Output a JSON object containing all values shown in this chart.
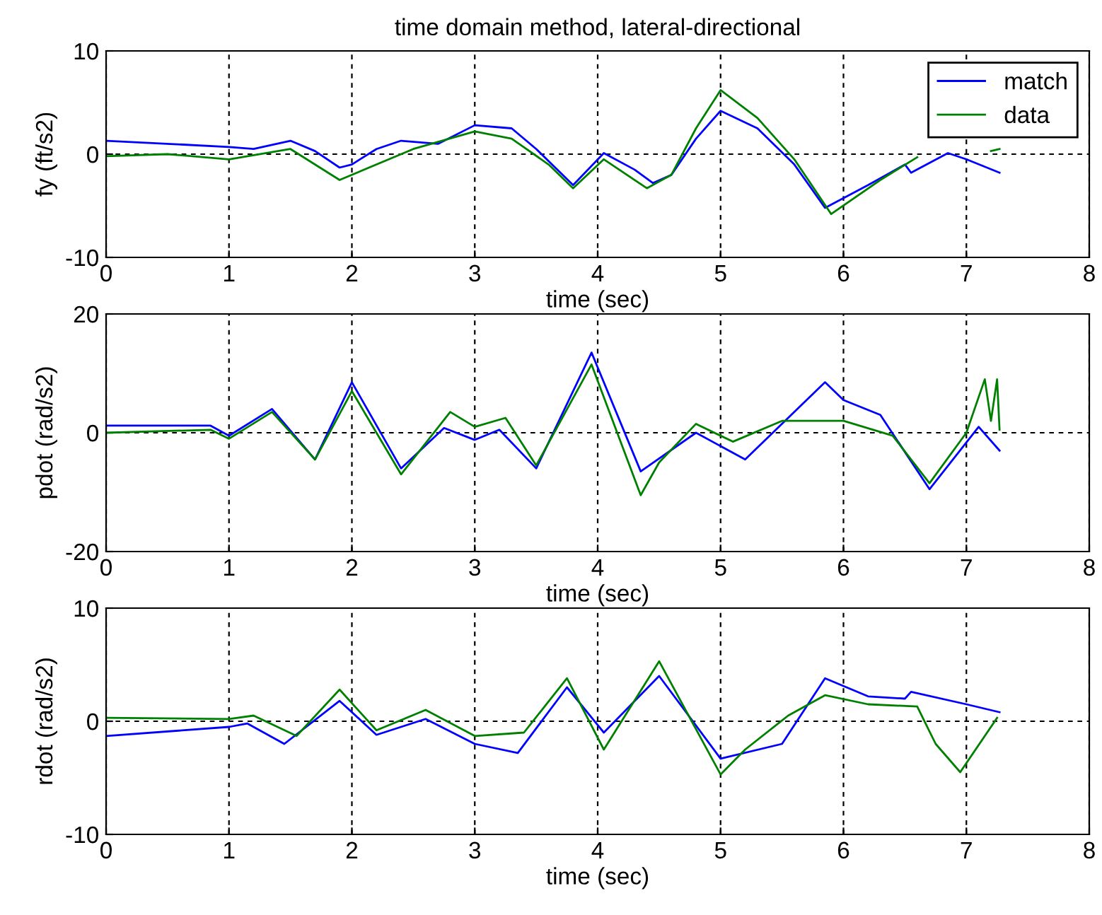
{
  "chart_data": [
    {
      "type": "line",
      "title": "time domain method, lateral-directional",
      "xlabel": "time (sec)",
      "ylabel": "fy (ft/s2)",
      "xlim": [
        0,
        8
      ],
      "xticks": [
        0,
        1,
        2,
        3,
        4,
        5,
        6,
        7,
        8
      ],
      "ylim": [
        -10,
        10
      ],
      "yticks": [
        -10,
        0,
        10
      ],
      "grid": true,
      "legend": "top right",
      "series": [
        {
          "name": "match",
          "color": "#0000ff",
          "x": [
            0,
            1.0,
            1.2,
            1.5,
            1.7,
            1.9,
            2.0,
            2.2,
            2.4,
            2.7,
            3.0,
            3.3,
            3.5,
            3.8,
            4.05,
            4.3,
            4.45,
            4.6,
            4.8,
            5.0,
            5.3,
            5.6,
            5.85,
            6.2,
            6.5,
            6.55,
            6.85,
            7.0,
            7.27
          ],
          "values": [
            1.3,
            0.7,
            0.5,
            1.3,
            0.3,
            -1.3,
            -1.0,
            0.5,
            1.3,
            1.0,
            2.8,
            2.5,
            0.5,
            -3.0,
            0.1,
            -1.5,
            -2.8,
            -2.0,
            1.5,
            4.2,
            2.5,
            -1.0,
            -5.2,
            -3.0,
            -1.0,
            -1.8,
            0.1,
            -0.5,
            -1.8
          ]
        },
        {
          "name": "data",
          "color": "#008000",
          "x": [
            0,
            0.5,
            1.0,
            1.5,
            1.9,
            2.5,
            3.0,
            3.3,
            3.6,
            3.8,
            4.05,
            4.4,
            4.6,
            4.8,
            5.0,
            5.3,
            5.6,
            5.9,
            6.3,
            6.6,
            6.7,
            7.2,
            7.27
          ],
          "values": [
            -0.2,
            0.0,
            -0.5,
            0.5,
            -2.5,
            0.5,
            2.2,
            1.5,
            -1.0,
            -3.3,
            -0.5,
            -3.3,
            -2.0,
            2.5,
            6.2,
            3.5,
            -0.5,
            -5.8,
            -2.5,
            -0.3,
            null,
            0.3,
            0.5
          ]
        }
      ]
    },
    {
      "type": "line",
      "xlabel": "time (sec)",
      "ylabel": "pdot (rad/s2)",
      "xlim": [
        0,
        8
      ],
      "xticks": [
        0,
        1,
        2,
        3,
        4,
        5,
        6,
        7,
        8
      ],
      "ylim": [
        -20,
        20
      ],
      "yticks": [
        -20,
        0,
        20
      ],
      "grid": true,
      "series": [
        {
          "color": "#0000ff",
          "x": [
            0,
            0.85,
            1.0,
            1.35,
            1.7,
            2.0,
            2.4,
            2.75,
            3.0,
            3.2,
            3.5,
            3.95,
            4.35,
            4.8,
            5.2,
            5.85,
            6.0,
            6.3,
            6.7,
            7.1,
            7.27
          ],
          "values": [
            1.2,
            1.2,
            -0.5,
            4.0,
            -4.5,
            8.5,
            -6.0,
            0.8,
            -1.2,
            0.5,
            -6.0,
            13.5,
            -6.5,
            0.0,
            -4.5,
            8.5,
            5.5,
            3.0,
            -9.5,
            1.0,
            -3.0
          ]
        },
        {
          "color": "#008000",
          "x": [
            0,
            0.85,
            1.0,
            1.35,
            1.7,
            2.0,
            2.4,
            2.8,
            3.0,
            3.25,
            3.5,
            3.95,
            4.35,
            4.5,
            4.8,
            5.1,
            5.5,
            6.0,
            6.4,
            6.7,
            7.0,
            7.15,
            7.2,
            7.25,
            7.27
          ],
          "values": [
            0.0,
            0.5,
            -1.0,
            3.5,
            -4.5,
            7.0,
            -7.0,
            3.5,
            1.0,
            2.5,
            -5.5,
            11.5,
            -10.5,
            -5.0,
            1.5,
            -1.5,
            2.0,
            2.0,
            -0.5,
            -8.5,
            0.0,
            9.0,
            2.0,
            9.0,
            0.5
          ]
        }
      ]
    },
    {
      "type": "line",
      "xlabel": "time (sec)",
      "ylabel": "rdot (rad/s2)",
      "xlim": [
        0,
        8
      ],
      "xticks": [
        0,
        1,
        2,
        3,
        4,
        5,
        6,
        7,
        8
      ],
      "ylim": [
        -10,
        10
      ],
      "yticks": [
        -10,
        0,
        10
      ],
      "grid": true,
      "series": [
        {
          "color": "#0000ff",
          "x": [
            0,
            1.0,
            1.15,
            1.45,
            1.9,
            2.2,
            2.6,
            3.0,
            3.35,
            3.75,
            4.05,
            4.5,
            5.0,
            5.5,
            5.85,
            6.2,
            6.5,
            6.55,
            7.0,
            7.27
          ],
          "values": [
            -1.3,
            -0.5,
            -0.2,
            -2.0,
            1.8,
            -1.2,
            0.2,
            -2.0,
            -2.8,
            3.0,
            -1.0,
            4.0,
            -3.3,
            -2.0,
            3.8,
            2.2,
            2.0,
            2.6,
            1.5,
            0.8
          ]
        },
        {
          "color": "#008000",
          "x": [
            0,
            1.0,
            1.2,
            1.55,
            1.9,
            2.2,
            2.6,
            3.0,
            3.4,
            3.75,
            4.05,
            4.5,
            5.0,
            5.2,
            5.55,
            5.85,
            6.2,
            6.6,
            6.75,
            6.95,
            7.25
          ],
          "values": [
            0.3,
            0.2,
            0.5,
            -1.3,
            2.8,
            -0.8,
            1.0,
            -1.3,
            -1.0,
            3.8,
            -2.5,
            5.3,
            -4.7,
            -2.5,
            0.5,
            2.3,
            1.5,
            1.3,
            -2.0,
            -4.5,
            0.3
          ]
        }
      ]
    }
  ]
}
